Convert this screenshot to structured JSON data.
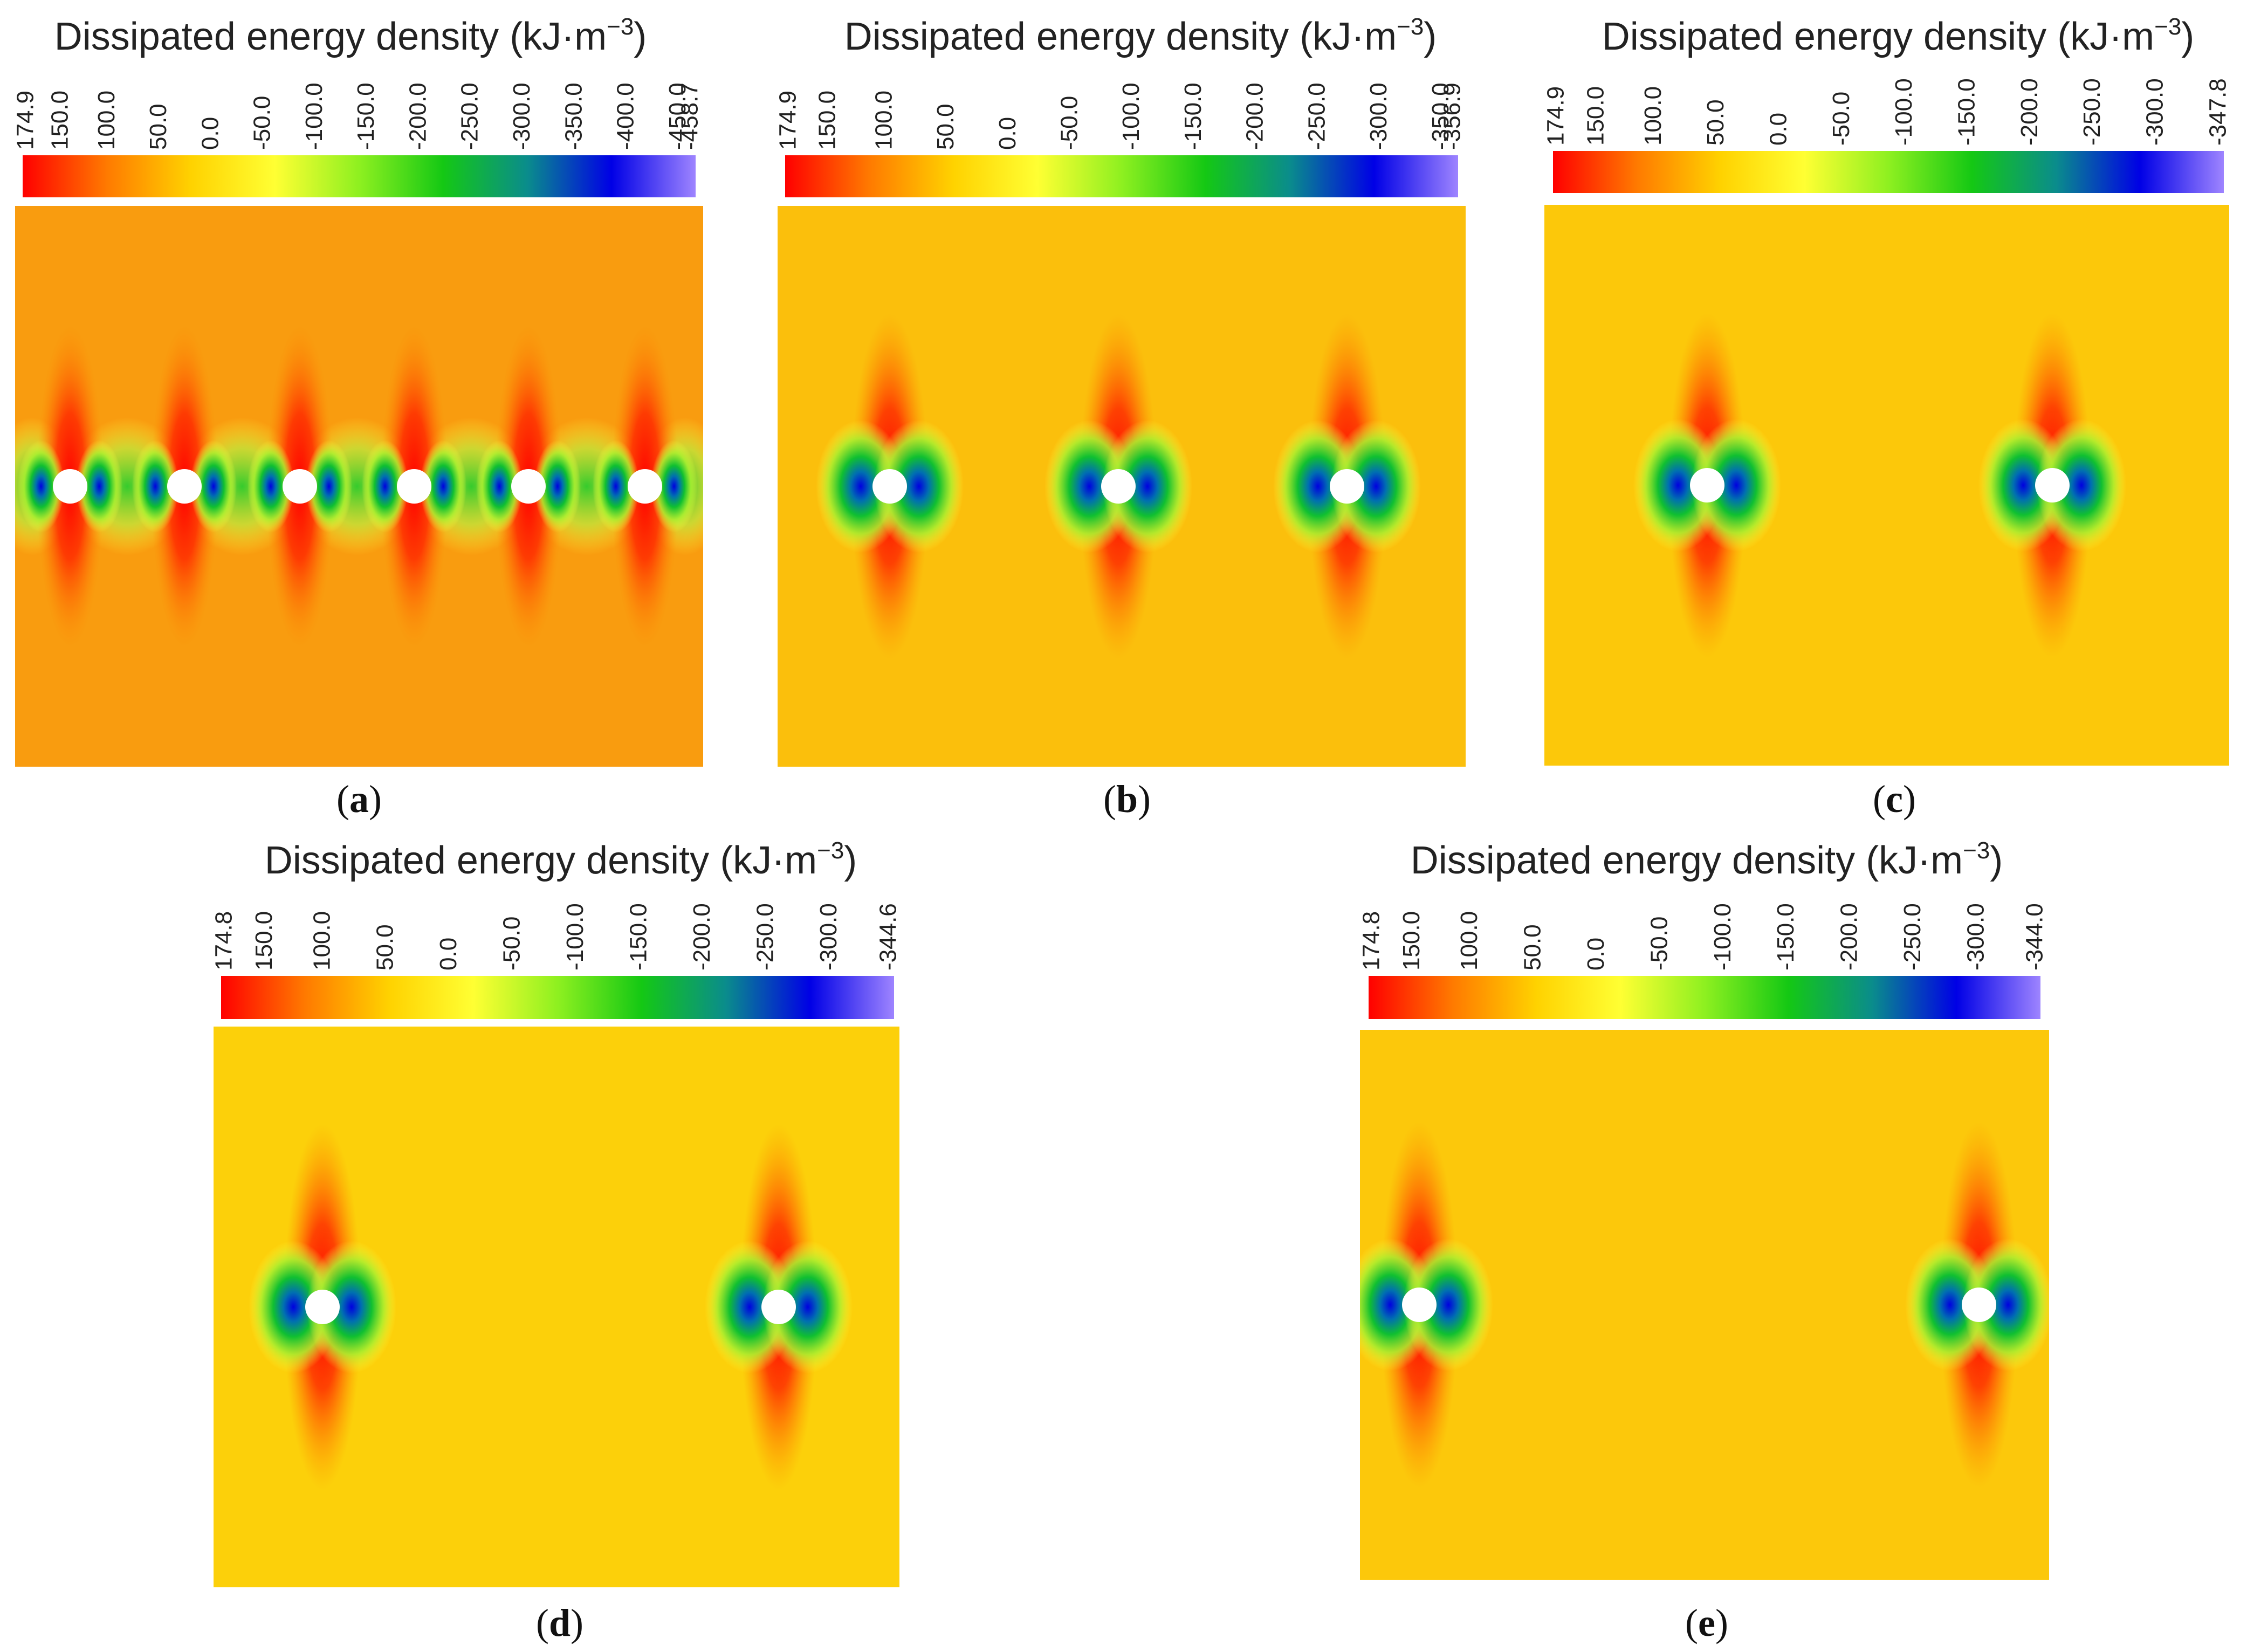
{
  "chart_data": [
    {
      "type": "heatmap",
      "panel": "a",
      "title": "Dissipated energy density",
      "unit_base": "(kJ·m",
      "unit_exp": "−3",
      "unit_close": ")",
      "panel_label": "a",
      "colorbar_ticks": [
        "174.9",
        "150.0",
        "100.0",
        "50.0",
        "0.0",
        "-50.0",
        "-100.0",
        "-150.0",
        "-200.0",
        "-250.0",
        "-300.0",
        "-350.0",
        "-400.0",
        "-450.0",
        "-458.7"
      ],
      "colorbar_range": [
        174.9,
        -458.7
      ],
      "holes": 6,
      "background_color": "#f99c0f"
    },
    {
      "type": "heatmap",
      "panel": "b",
      "title": "Dissipated energy density",
      "unit_base": "(kJ·m",
      "unit_exp": "−3",
      "unit_close": ")",
      "panel_label": "b",
      "colorbar_ticks": [
        "174.9",
        "150.0",
        "100.0",
        "50.0",
        "0.0",
        "-50.0",
        "-100.0",
        "-150.0",
        "-200.0",
        "-250.0",
        "-300.0",
        "-350.0",
        "-356.9"
      ],
      "colorbar_range": [
        174.9,
        -356.9
      ],
      "holes": 3,
      "background_color": "#fbbf0c"
    },
    {
      "type": "heatmap",
      "panel": "c",
      "title": "Dissipated energy density",
      "unit_base": "(kJ·m",
      "unit_exp": "−3",
      "unit_close": ")",
      "panel_label": "c",
      "colorbar_ticks": [
        "174.9",
        "150.0",
        "100.0",
        "50.0",
        "0.0",
        "-50.0",
        "-100.0",
        "-150.0",
        "-200.0",
        "-250.0",
        "-300.0",
        "-347.8"
      ],
      "colorbar_range": [
        174.9,
        -347.8
      ],
      "holes": 2,
      "background_color": "#fcc80a"
    },
    {
      "type": "heatmap",
      "panel": "d",
      "title": "Dissipated energy density",
      "unit_base": "(kJ·m",
      "unit_exp": "−3",
      "unit_close": ")",
      "panel_label": "d",
      "colorbar_ticks": [
        "174.8",
        "150.0",
        "100.0",
        "50.0",
        "0.0",
        "-50.0",
        "-100.0",
        "-150.0",
        "-200.0",
        "-250.0",
        "-300.0",
        "-344.6"
      ],
      "colorbar_range": [
        174.8,
        -344.6
      ],
      "holes": 2,
      "background_color": "#fcd00a"
    },
    {
      "type": "heatmap",
      "panel": "e",
      "title": "Dissipated energy density",
      "unit_base": "(kJ·m",
      "unit_exp": "−3",
      "unit_close": ")",
      "panel_label": "e",
      "colorbar_ticks": [
        "174.8",
        "150.0",
        "100.0",
        "50.0",
        "0.0",
        "-50.0",
        "-100.0",
        "-150.0",
        "-200.0",
        "-250.0",
        "-300.0",
        "-344.0"
      ],
      "colorbar_range": [
        174.8,
        -344.0
      ],
      "holes": 2,
      "background_color": "#fcc80b"
    }
  ],
  "colormap": [
    "#ff0000",
    "#ff7a00",
    "#ffd200",
    "#ffff33",
    "#8ef020",
    "#14c814",
    "#0a8c8c",
    "#0000e6",
    "#9e84ff"
  ]
}
